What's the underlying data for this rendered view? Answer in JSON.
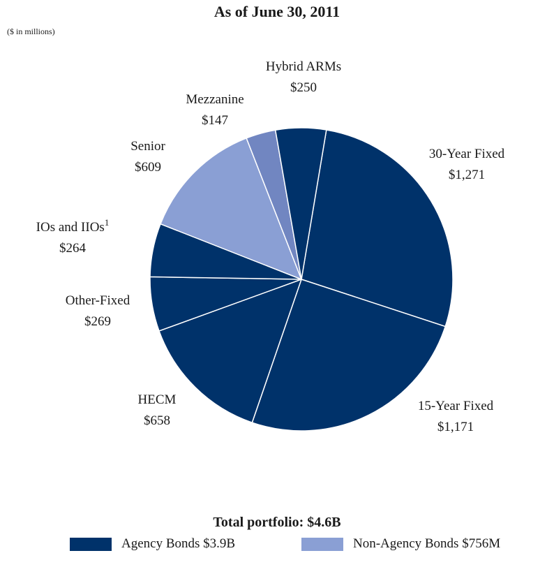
{
  "chart_data": {
    "type": "pie",
    "title": "As of June 30, 2011",
    "subtitle": "($ in millions)",
    "footer": "Total portfolio: $4.6B",
    "slices": [
      {
        "label": "30-Year Fixed",
        "value_label": "$1,271",
        "value": 1271,
        "color": "#00326a"
      },
      {
        "label": "15-Year Fixed",
        "value_label": "$1,171",
        "value": 1171,
        "color": "#00326a"
      },
      {
        "label": "HECM",
        "value_label": "$658",
        "value": 658,
        "color": "#00326a"
      },
      {
        "label": "Other-Fixed",
        "value_label": "$269",
        "value": 269,
        "color": "#00326a"
      },
      {
        "label": "IOs and IIOs",
        "superscript": "1",
        "value_label": "$264",
        "value": 264,
        "color": "#00326a"
      },
      {
        "label": "Senior",
        "value_label": "$609",
        "value": 609,
        "color": "#8a9fd4"
      },
      {
        "label": "Mezzanine",
        "value_label": "$147",
        "value": 147,
        "color": "#7186c1"
      },
      {
        "label": "Hybrid ARMs",
        "value_label": "$250",
        "value": 250,
        "color": "#00326a"
      }
    ],
    "legend": [
      {
        "label": "Agency Bonds $3.9B",
        "color": "#00326a"
      },
      {
        "label": "Non-Agency Bonds $756M",
        "color": "#8a9fd4"
      }
    ]
  }
}
